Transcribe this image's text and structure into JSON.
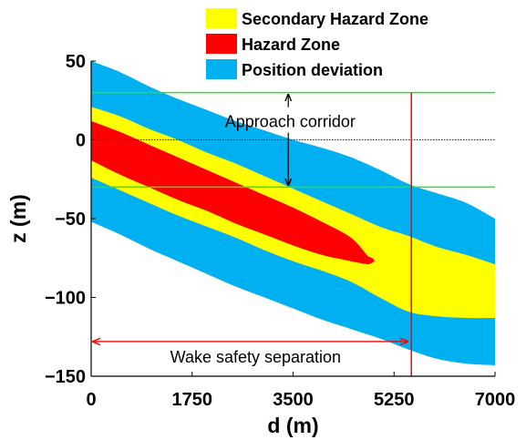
{
  "chart_data": {
    "type": "area",
    "title": "",
    "xlabel": "d (m)",
    "ylabel": "z (m)",
    "xlim": [
      0,
      7000
    ],
    "ylim": [
      -150,
      50
    ],
    "xticks": [
      0,
      1750,
      3500,
      5250,
      7000
    ],
    "yticks": [
      50,
      0,
      -50,
      -100,
      -150
    ],
    "grid": false,
    "legend_position": "top",
    "colors": {
      "secondary_hazard_zone": "#ffff00",
      "hazard_zone": "#ff0000",
      "position_deviation": "#00b0f0",
      "corridor_lines": "#33dd33",
      "centerline": "#0000ff",
      "separation_line": "#ff0000"
    },
    "legend": [
      {
        "key": "secondary",
        "label": "Secondary Hazard Zone",
        "color": "#ffff00"
      },
      {
        "key": "hazard",
        "label": "Hazard Zone",
        "color": "#ff0000"
      },
      {
        "key": "position",
        "label": "Position deviation",
        "color": "#00b0f0"
      }
    ],
    "series": [
      {
        "name": "Position deviation",
        "upper": [
          [
            0,
            50
          ],
          [
            500,
            43
          ],
          [
            1000,
            34
          ],
          [
            1500,
            26
          ],
          [
            2000,
            19
          ],
          [
            2500,
            12
          ],
          [
            3000,
            6
          ],
          [
            3500,
            0
          ],
          [
            4000,
            -5
          ],
          [
            4500,
            -11
          ],
          [
            5000,
            -19
          ],
          [
            5500,
            -28
          ],
          [
            6000,
            -34
          ],
          [
            6500,
            -40
          ],
          [
            7000,
            -50
          ]
        ],
        "lower": [
          [
            0,
            -52
          ],
          [
            500,
            -60
          ],
          [
            1000,
            -69
          ],
          [
            1500,
            -77
          ],
          [
            2000,
            -85
          ],
          [
            2500,
            -93
          ],
          [
            3000,
            -100
          ],
          [
            3500,
            -107
          ],
          [
            4000,
            -114
          ],
          [
            4500,
            -120
          ],
          [
            5000,
            -126
          ],
          [
            5500,
            -133
          ],
          [
            6000,
            -139
          ],
          [
            6500,
            -142
          ],
          [
            7000,
            -143
          ]
        ]
      },
      {
        "name": "Secondary Hazard Zone",
        "upper": [
          [
            0,
            21
          ],
          [
            500,
            15
          ],
          [
            1000,
            7
          ],
          [
            1500,
            0
          ],
          [
            2000,
            -8
          ],
          [
            2500,
            -15
          ],
          [
            3000,
            -23
          ],
          [
            3500,
            -31
          ],
          [
            4000,
            -39
          ],
          [
            4500,
            -47
          ],
          [
            5000,
            -55
          ],
          [
            5500,
            -61
          ],
          [
            6000,
            -68
          ],
          [
            6500,
            -73
          ],
          [
            7000,
            -79
          ]
        ],
        "lower": [
          [
            0,
            -24
          ],
          [
            500,
            -32
          ],
          [
            1000,
            -40
          ],
          [
            1500,
            -48
          ],
          [
            2000,
            -55
          ],
          [
            2500,
            -62
          ],
          [
            3000,
            -70
          ],
          [
            3500,
            -77
          ],
          [
            4000,
            -83
          ],
          [
            4500,
            -90
          ],
          [
            5000,
            -100
          ],
          [
            5500,
            -109
          ],
          [
            6000,
            -112
          ],
          [
            6500,
            -113
          ],
          [
            7000,
            -113
          ]
        ]
      },
      {
        "name": "Hazard Zone",
        "upper": [
          [
            0,
            12
          ],
          [
            500,
            5
          ],
          [
            1000,
            -3
          ],
          [
            1500,
            -11
          ],
          [
            2000,
            -19
          ],
          [
            2500,
            -27
          ],
          [
            3000,
            -35
          ],
          [
            3500,
            -43
          ],
          [
            4000,
            -52
          ],
          [
            4500,
            -62
          ],
          [
            4800,
            -74
          ]
        ],
        "lower": [
          [
            0,
            -13
          ],
          [
            500,
            -22
          ],
          [
            1000,
            -30
          ],
          [
            1500,
            -38
          ],
          [
            2000,
            -45
          ],
          [
            2500,
            -53
          ],
          [
            3000,
            -60
          ],
          [
            3500,
            -67
          ],
          [
            4000,
            -73
          ],
          [
            4500,
            -77
          ],
          [
            4800,
            -79
          ]
        ]
      }
    ],
    "reference_lines": {
      "corridor_upper_z": 30,
      "corridor_lower_z": -30,
      "centerline_z": 0,
      "separation_d": 5550
    },
    "annotations": {
      "approach_corridor": {
        "text": "Approach corridor",
        "d": 3450,
        "z": 8
      },
      "wake_safety_separation": {
        "text": "Wake safety separation",
        "d": 2850,
        "z": -138,
        "from_d": 0,
        "to_d": 5550,
        "arrow_z": -128
      }
    }
  }
}
